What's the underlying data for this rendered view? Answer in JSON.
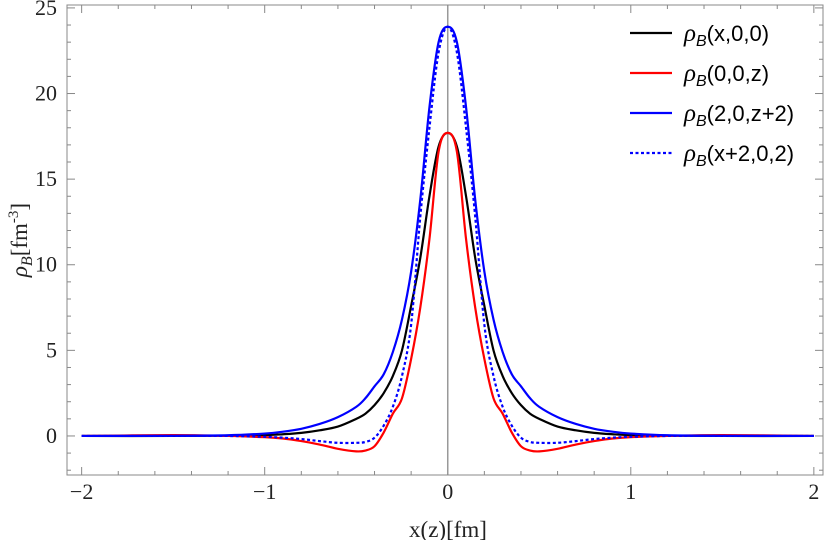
{
  "chart_data": {
    "type": "line",
    "title": "",
    "xlabel": "x(z)[fm]",
    "ylabel": {
      "base": "ρ",
      "sub": "B",
      "rest": "[fm",
      "sup": "-3",
      "close": "]"
    },
    "xlim": [
      -2.08,
      2.05
    ],
    "ylim": [
      -2.28,
      25.17
    ],
    "x_ticks": [
      -2,
      -1,
      0,
      1,
      2
    ],
    "x_tick_labels": [
      "−2",
      "−1",
      "0",
      "1",
      "2"
    ],
    "y_ticks": [
      0,
      5,
      10,
      15,
      20,
      25
    ],
    "y_tick_labels": [
      "0",
      "5",
      "10",
      "15",
      "20",
      "25"
    ],
    "grid": false,
    "legend_placement": "top-right",
    "x": [
      -2,
      -1.5,
      -1.2,
      -1,
      -0.9,
      -0.8,
      -0.7,
      -0.6,
      -0.5,
      -0.45,
      -0.4,
      -0.35,
      -0.3,
      -0.25,
      -0.2,
      -0.15,
      -0.1,
      -0.05,
      0,
      0.05,
      0.1,
      0.15,
      0.2,
      0.25,
      0.3,
      0.35,
      0.4,
      0.45,
      0.5,
      0.6,
      0.7,
      0.8,
      0.9,
      1,
      1.2,
      1.5,
      2
    ],
    "series": [
      {
        "name": {
          "base": "ρ",
          "sub": "B",
          "args": "(x,0,0)"
        },
        "color": "#000000",
        "dash": false,
        "values": [
          0,
          0,
          0.02,
          0.05,
          0.1,
          0.18,
          0.33,
          0.55,
          1.0,
          1.3,
          1.8,
          2.5,
          3.5,
          5.0,
          7.6,
          10.4,
          14.0,
          16.9,
          17.7,
          16.9,
          14.0,
          10.4,
          7.6,
          5.0,
          3.5,
          2.5,
          1.8,
          1.3,
          1.0,
          0.55,
          0.33,
          0.18,
          0.1,
          0.05,
          0.02,
          0,
          0
        ]
      },
      {
        "name": {
          "base": "ρ",
          "sub": "B",
          "args": "(0,0,z)"
        },
        "color": "#ff0000",
        "dash": false,
        "values": [
          0,
          0.05,
          0,
          -0.07,
          -0.15,
          -0.3,
          -0.5,
          -0.75,
          -0.9,
          -0.85,
          -0.6,
          0.2,
          1.3,
          2.2,
          4.5,
          7.5,
          11.5,
          16.6,
          17.7,
          16.6,
          11.5,
          7.5,
          4.5,
          2.2,
          1.3,
          0.2,
          -0.6,
          -0.85,
          -0.9,
          -0.75,
          -0.5,
          -0.3,
          -0.15,
          -0.07,
          0,
          0.05,
          0
        ]
      },
      {
        "name": {
          "base": "ρ",
          "sub": "B",
          "args": "(2,0,z+2)"
        },
        "color": "#0000ff",
        "dash": false,
        "values": [
          0,
          0.01,
          0.04,
          0.14,
          0.25,
          0.42,
          0.7,
          1.1,
          1.7,
          2.2,
          2.9,
          3.6,
          4.9,
          6.8,
          9.6,
          13.8,
          19.2,
          23.0,
          23.9,
          23.0,
          19.2,
          13.8,
          9.6,
          6.8,
          4.9,
          3.6,
          2.9,
          2.2,
          1.7,
          1.1,
          0.7,
          0.42,
          0.25,
          0.14,
          0.04,
          0.01,
          0
        ]
      },
      {
        "name": {
          "base": "ρ",
          "sub": "B",
          "args": "(x+2,0,2)"
        },
        "color": "#0000ff",
        "dash": true,
        "values": [
          0,
          0,
          0,
          -0.05,
          -0.1,
          -0.18,
          -0.3,
          -0.4,
          -0.4,
          -0.35,
          -0.1,
          0.6,
          1.7,
          3.5,
          6.5,
          12.8,
          18.0,
          22.4,
          23.9,
          22.4,
          18.0,
          12.8,
          6.5,
          3.5,
          1.7,
          0.6,
          -0.1,
          -0.35,
          -0.4,
          -0.4,
          -0.3,
          -0.18,
          -0.1,
          -0.05,
          0,
          0,
          0
        ]
      }
    ],
    "zero_line_color": "#999999"
  }
}
